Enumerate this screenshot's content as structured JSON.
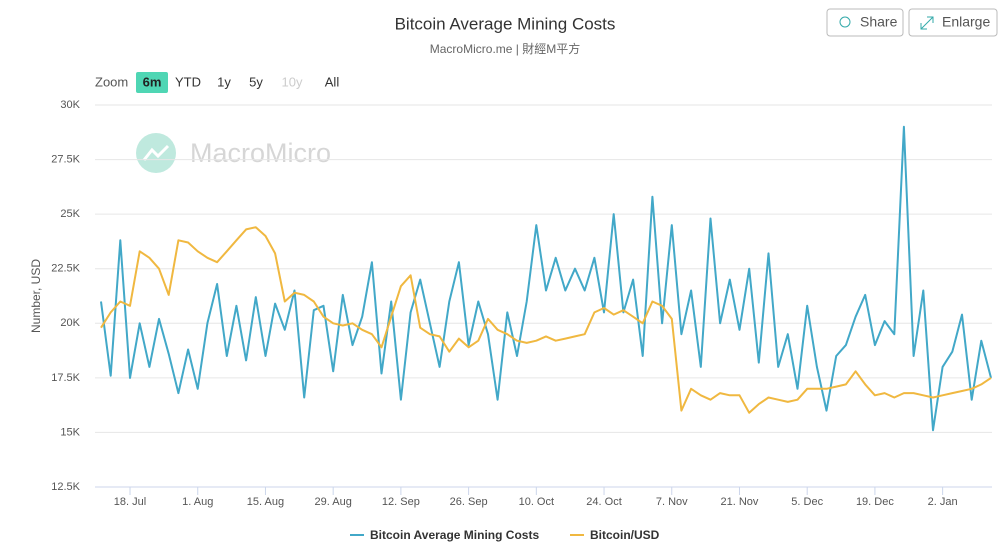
{
  "toolbar": {
    "buttons": [
      "Share",
      "Enlarge"
    ],
    "zoom_label": "Zoom",
    "zoom_options": [
      "6m",
      "YTD",
      "1y",
      "5y",
      "10y",
      "All"
    ],
    "zoom_selected": "6m",
    "zoom_disabled": "10y"
  },
  "watermark": "MacroMicro",
  "chart_data": {
    "type": "line",
    "title": "Bitcoin Average Mining Costs",
    "subtitle": "MacroMicro.me | 財經M平方",
    "y_axis_label": "Number, USD",
    "categories": [
      null,
      null,
      null,
      "18. Jul",
      null,
      null,
      null,
      null,
      null,
      null,
      "1. Aug",
      null,
      null,
      null,
      null,
      null,
      null,
      "15. Aug",
      null,
      null,
      null,
      null,
      null,
      null,
      "29. Aug",
      null,
      null,
      null,
      null,
      null,
      null,
      "12. Sep",
      null,
      null,
      null,
      null,
      null,
      null,
      "26. Sep",
      null,
      null,
      null,
      null,
      null,
      null,
      "10. Oct",
      null,
      null,
      null,
      null,
      null,
      null,
      "24. Oct",
      null,
      null,
      null,
      null,
      null,
      null,
      "7. Nov",
      null,
      null,
      null,
      null,
      null,
      null,
      "21. Nov",
      null,
      null,
      null,
      null,
      null,
      null,
      "5. Dec",
      null,
      null,
      null,
      null,
      null,
      null,
      "19. Dec",
      null,
      null,
      null,
      null,
      null,
      null,
      "2. Jan",
      null,
      null,
      null,
      null,
      null
    ],
    "series": [
      {
        "name": "Bitcoin Average Mining Costs",
        "color": "#42a8c8",
        "values": [
          21000,
          17600,
          23800,
          17500,
          20000,
          18000,
          20200,
          18600,
          16800,
          18800,
          17000,
          20000,
          21800,
          18500,
          20800,
          18300,
          21200,
          18500,
          20900,
          19700,
          21500,
          16600,
          20600,
          20800,
          17800,
          21300,
          19000,
          20300,
          22800,
          17700,
          21000,
          16500,
          20500,
          22000,
          20000,
          18000,
          21000,
          22800,
          19000,
          21000,
          19500,
          16500,
          20500,
          18500,
          21000,
          24500,
          21500,
          23000,
          21500,
          22500,
          21500,
          23000,
          20500,
          25000,
          20500,
          22000,
          18500,
          25800,
          20000,
          24500,
          19500,
          21500,
          18000,
          24800,
          20000,
          22000,
          19700,
          22500,
          18200,
          23200,
          18000,
          19500,
          17000,
          20800,
          18000,
          16000,
          18500,
          19000,
          20300,
          21300,
          19000,
          20100,
          19500,
          29000,
          18500,
          21500,
          15100,
          18000,
          18700,
          20400,
          16500,
          19200,
          17500
        ]
      },
      {
        "name": "Bitcoin/USD",
        "color": "#f0b840",
        "values": [
          19800,
          20500,
          21000,
          20800,
          23300,
          23000,
          22500,
          21300,
          23800,
          23700,
          23300,
          23000,
          22800,
          23300,
          23800,
          24300,
          24400,
          24000,
          23200,
          21000,
          21400,
          21300,
          21000,
          20300,
          20000,
          19900,
          20000,
          19700,
          19500,
          18900,
          20300,
          21700,
          22200,
          19800,
          19500,
          19400,
          18700,
          19300,
          18900,
          19200,
          20200,
          19700,
          19500,
          19200,
          19100,
          19200,
          19400,
          19200,
          19300,
          19400,
          19500,
          20500,
          20700,
          20400,
          20600,
          20300,
          20000,
          21000,
          20800,
          20200,
          16000,
          17000,
          16700,
          16500,
          16800,
          16700,
          16700,
          15900,
          16300,
          16600,
          16500,
          16400,
          16500,
          17000,
          17000,
          17000,
          17100,
          17200,
          17800,
          17200,
          16700,
          16800,
          16600,
          16800,
          16800,
          16700,
          16600,
          16700,
          16800,
          16900,
          17000,
          17200,
          17500
        ]
      }
    ],
    "ylim": [
      12500,
      30000
    ],
    "yticks": [
      {
        "value": 12500,
        "label": "12.5K"
      },
      {
        "value": 15000,
        "label": "15K"
      },
      {
        "value": 17500,
        "label": "17.5K"
      },
      {
        "value": 20000,
        "label": "20K"
      },
      {
        "value": 22500,
        "label": "22.5K"
      },
      {
        "value": 25000,
        "label": "25K"
      },
      {
        "value": 27500,
        "label": "27.5K"
      },
      {
        "value": 30000,
        "label": "30K"
      }
    ],
    "grid": true,
    "legend": "bottom"
  }
}
